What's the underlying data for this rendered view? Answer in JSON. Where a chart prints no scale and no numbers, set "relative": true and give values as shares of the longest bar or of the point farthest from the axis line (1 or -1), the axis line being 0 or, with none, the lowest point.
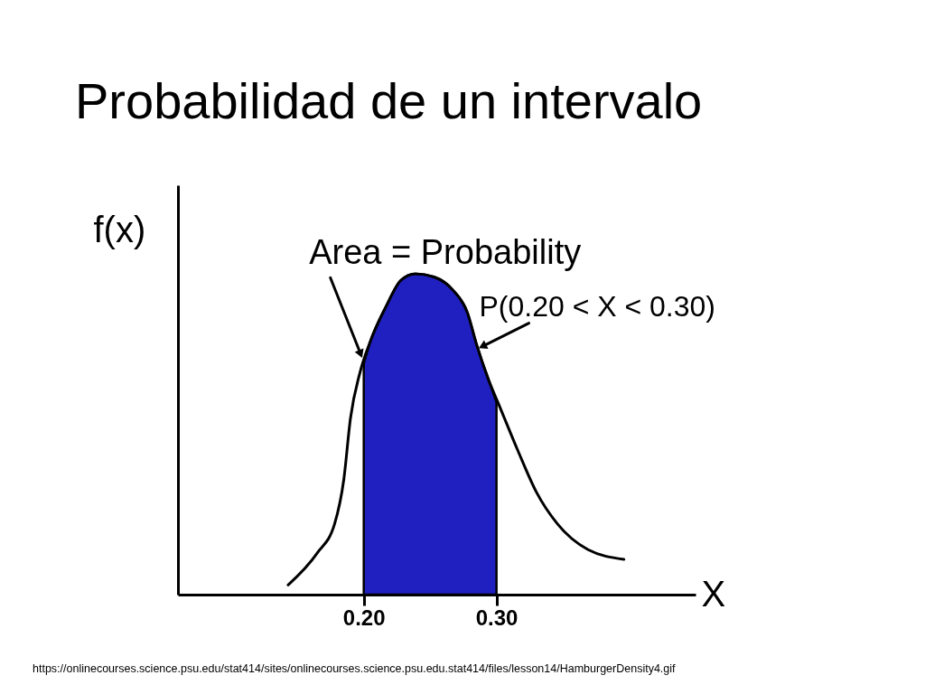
{
  "chart_data": {
    "type": "line",
    "title": "Probabilidad de un intervalo",
    "xlabel": "X",
    "ylabel": "f(x)",
    "relative": true,
    "xlim": [
      0.06,
      0.45
    ],
    "xticks": [
      {
        "value": 0.2,
        "label": "0.20"
      },
      {
        "value": 0.3,
        "label": "0.30"
      }
    ],
    "series": [
      {
        "type": "area",
        "color": "#2020c0",
        "x": [
          0.2,
          0.205,
          0.217,
          0.228,
          0.239,
          0.253,
          0.267,
          0.278,
          0.285,
          0.294,
          0.3
        ],
        "values": [
          0.72,
          0.79,
          0.9,
          0.98,
          1.0,
          0.99,
          0.95,
          0.88,
          0.78,
          0.67,
          0.6
        ]
      },
      {
        "color": "#000000",
        "x": [
          0.143,
          0.165,
          0.178,
          0.185,
          0.19,
          0.197,
          0.205,
          0.217,
          0.228,
          0.239,
          0.253,
          0.267,
          0.278,
          0.285,
          0.294,
          0.303,
          0.316,
          0.33,
          0.346,
          0.369,
          0.396
        ],
        "values": [
          0.03,
          0.13,
          0.22,
          0.36,
          0.55,
          0.69,
          0.79,
          0.9,
          0.98,
          1.0,
          0.99,
          0.95,
          0.88,
          0.78,
          0.67,
          0.58,
          0.45,
          0.32,
          0.22,
          0.14,
          0.11
        ]
      }
    ],
    "annotations": [
      {
        "text": "Area = Probability",
        "x": 0.2,
        "y": 0.74
      },
      {
        "text": "P(0.20 < X < 0.30)",
        "x": 0.287,
        "y": 0.77
      },
      "https://onlinecourses.science.psu.edu/stat414/sites/onlinecourses.science.psu.edu.stat414/files/lesson14/HamburgerDensity4.gif"
    ],
    "line_style": "solid"
  }
}
